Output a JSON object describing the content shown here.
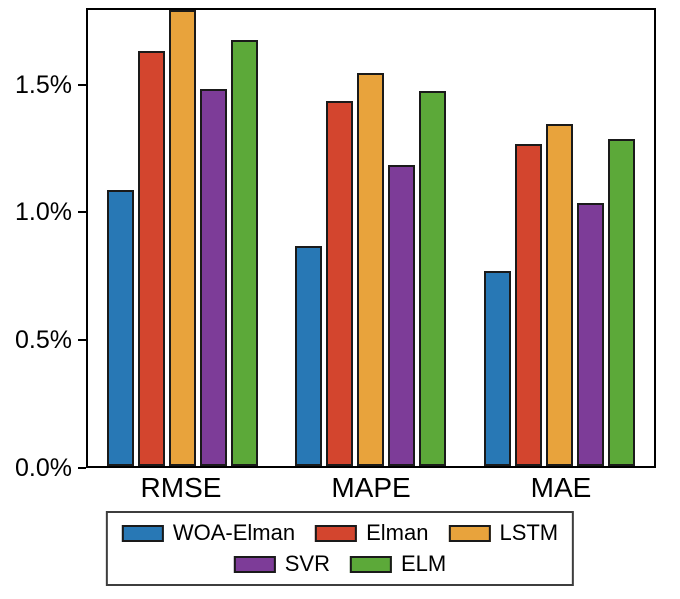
{
  "chart_data": {
    "type": "bar",
    "title": "",
    "xlabel": "",
    "ylabel": "",
    "categories": [
      "RMSE",
      "MAPE",
      "MAE"
    ],
    "series": [
      {
        "name": "WOA-Elman",
        "color": "#2878b5",
        "values": [
          1.09,
          0.87,
          0.77
        ]
      },
      {
        "name": "Elman",
        "color": "#d3452e",
        "values": [
          1.64,
          1.44,
          1.27
        ]
      },
      {
        "name": "LSTM",
        "color": "#e8a33c",
        "values": [
          1.8,
          1.55,
          1.35
        ]
      },
      {
        "name": "SVR",
        "color": "#7d3c98",
        "values": [
          1.49,
          1.19,
          1.04
        ]
      },
      {
        "name": "ELM",
        "color": "#5ca939",
        "values": [
          1.68,
          1.48,
          1.29
        ]
      }
    ],
    "ylim": [
      0,
      1.8
    ],
    "yticks": [
      {
        "label": "0.0%",
        "value": 0.0
      },
      {
        "label": "0.5%",
        "value": 0.5
      },
      {
        "label": "1.0%",
        "value": 1.0
      },
      {
        "label": "1.5%",
        "value": 1.5
      }
    ],
    "grid": false,
    "legend_position": "bottom",
    "legend_rows": [
      [
        "WOA-Elman",
        "Elman",
        "LSTM"
      ],
      [
        "SVR",
        "ELM"
      ]
    ]
  },
  "colors": {
    "axis": "#000000",
    "bar_edge": "#1a1a1a",
    "legend_border": "#3d3d3d",
    "background": "#ffffff"
  }
}
